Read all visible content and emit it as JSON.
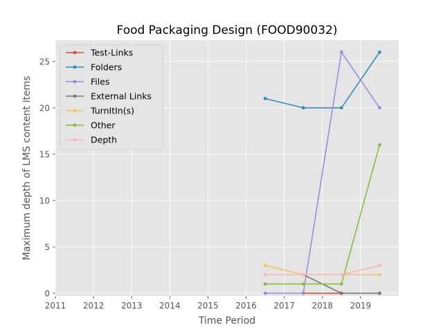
{
  "chart_data": {
    "type": "line",
    "title": "Food Packaging Design (FOOD90032)",
    "xlabel": "Time Period",
    "ylabel": "Maximum depth of LMS content items",
    "xlim": [
      2011,
      2020
    ],
    "ylim": [
      -0.3,
      27.3
    ],
    "xticks": [
      "2011",
      "2012",
      "2013",
      "2014",
      "2015",
      "2016",
      "2017",
      "2018",
      "2019"
    ],
    "yticks": [
      "0",
      "5",
      "10",
      "15",
      "20",
      "25"
    ],
    "grid": true,
    "legend_position": "upper-left",
    "series": [
      {
        "name": "Test-Links",
        "color": "#E24A33",
        "x": [
          2017.5,
          2018.5
        ],
        "y": [
          0,
          0
        ]
      },
      {
        "name": "Folders",
        "color": "#348ABD",
        "x": [
          2016.5,
          2017.5,
          2018.5,
          2019.5
        ],
        "y": [
          21,
          20,
          20,
          26
        ]
      },
      {
        "name": "Files",
        "color": "#988ED5",
        "x": [
          2016.5,
          2017.5,
          2018.5,
          2019.5
        ],
        "y": [
          0,
          0,
          26,
          20
        ]
      },
      {
        "name": "External Links",
        "color": "#777777",
        "x": [
          2017.5,
          2018.5,
          2019.5
        ],
        "y": [
          2,
          0,
          0
        ]
      },
      {
        "name": "TurnItIn(s)",
        "color": "#FBC15E",
        "x": [
          2016.5,
          2017.5,
          2018.5,
          2019.5
        ],
        "y": [
          3,
          2,
          2,
          2
        ]
      },
      {
        "name": "Other",
        "color": "#8EBA42",
        "x": [
          2016.5,
          2017.5,
          2018.5,
          2019.5
        ],
        "y": [
          1,
          1,
          1,
          16
        ]
      },
      {
        "name": "Depth",
        "color": "#FFB5B8",
        "x": [
          2016.5,
          2017.5,
          2018.5,
          2019.5
        ],
        "y": [
          2,
          2,
          2,
          3
        ]
      }
    ]
  },
  "style": {
    "plot_background": "#E5E5E5",
    "grid_color": "#FFFFFF"
  }
}
